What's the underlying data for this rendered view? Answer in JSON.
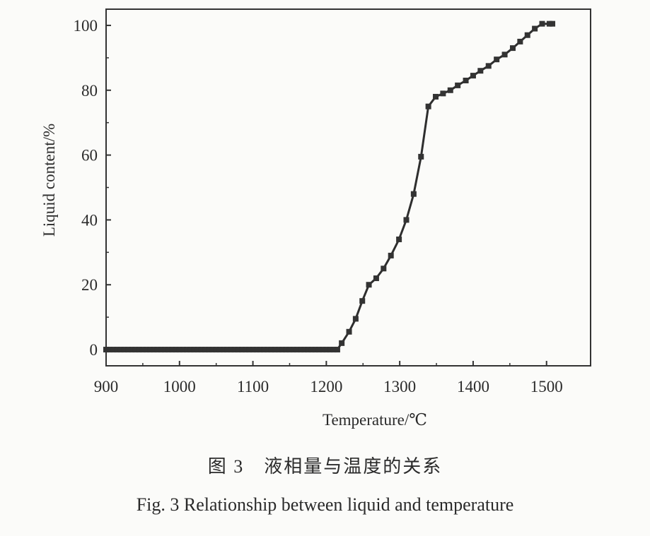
{
  "caption": {
    "cn": "图 3　液相量与温度的关系",
    "en": "Fig. 3    Relationship between liquid and temperature"
  },
  "chart_data": {
    "type": "line",
    "title": "",
    "xlabel": "Temperature/℃",
    "ylabel": "Liquid content/%",
    "xlim": [
      900,
      1560
    ],
    "ylim": [
      -5,
      105
    ],
    "xticks": [
      900,
      1000,
      1100,
      1200,
      1300,
      1400,
      1500
    ],
    "yticks": [
      0,
      20,
      40,
      60,
      80,
      100
    ],
    "grid": false,
    "legend": "none",
    "marker": "square",
    "series": [
      {
        "name": "",
        "x": [
          900,
          905,
          910,
          915,
          920,
          925,
          930,
          935,
          940,
          945,
          950,
          955,
          960,
          965,
          970,
          975,
          980,
          985,
          990,
          995,
          1000,
          1005,
          1010,
          1015,
          1020,
          1025,
          1030,
          1035,
          1040,
          1045,
          1050,
          1055,
          1060,
          1065,
          1070,
          1075,
          1080,
          1085,
          1090,
          1095,
          1100,
          1105,
          1110,
          1115,
          1120,
          1125,
          1130,
          1135,
          1140,
          1145,
          1150,
          1155,
          1160,
          1165,
          1170,
          1175,
          1180,
          1185,
          1190,
          1195,
          1200,
          1205,
          1210,
          1215,
          1221,
          1231,
          1240,
          1249,
          1258,
          1268,
          1278,
          1288,
          1299,
          1309,
          1319,
          1329,
          1339,
          1349,
          1359,
          1369,
          1379,
          1390,
          1400,
          1410,
          1421,
          1432,
          1443,
          1454,
          1464,
          1474,
          1484,
          1494,
          1504,
          1508
        ],
        "y": [
          0,
          0,
          0,
          0,
          0,
          0,
          0,
          0,
          0,
          0,
          0,
          0,
          0,
          0,
          0,
          0,
          0,
          0,
          0,
          0,
          0,
          0,
          0,
          0,
          0,
          0,
          0,
          0,
          0,
          0,
          0,
          0,
          0,
          0,
          0,
          0,
          0,
          0,
          0,
          0,
          0,
          0,
          0,
          0,
          0,
          0,
          0,
          0,
          0,
          0,
          0,
          0,
          0,
          0,
          0,
          0,
          0,
          0,
          0,
          0,
          0,
          0,
          0,
          0,
          2,
          5.5,
          9.5,
          15,
          20,
          22,
          25,
          29,
          34,
          40,
          48,
          59.5,
          75,
          78,
          79,
          80,
          81.5,
          83,
          84.5,
          86,
          87.5,
          89.5,
          91,
          93,
          95,
          97,
          99,
          100.5,
          100.5,
          100.5
        ]
      }
    ]
  }
}
